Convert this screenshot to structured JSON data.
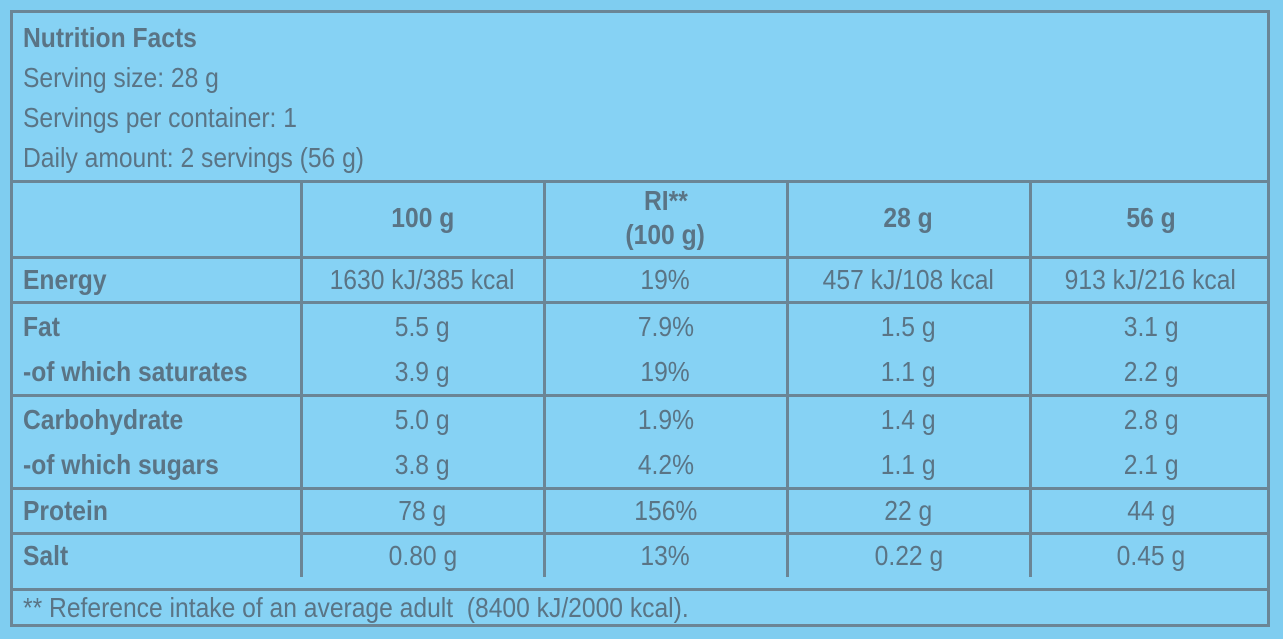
{
  "header": {
    "title": "Nutrition Facts",
    "serving_size": "Serving size: 28 g",
    "servings_per_container": "Servings per container: 1",
    "daily_amount": "Daily amount: 2 servings (56 g)"
  },
  "columns": {
    "label": "",
    "per100": "100 g",
    "ri_line1": "RI**",
    "ri_line2": "(100 g)",
    "per28": "28 g",
    "per56": "56 g"
  },
  "rows": {
    "energy": {
      "label": "Energy",
      "per100": "1630 kJ/385 kcal",
      "ri": "19%",
      "per28": "457 kJ/108 kcal",
      "per56": "913 kJ/216 kcal"
    },
    "fat": {
      "label": "Fat",
      "per100": "5.5 g",
      "ri": "7.9%",
      "per28": "1.5 g",
      "per56": "3.1 g"
    },
    "saturates": {
      "label": "-of which saturates",
      "per100": "3.9 g",
      "ri": "19%",
      "per28": "1.1 g",
      "per56": "2.2 g"
    },
    "carbohydrate": {
      "label": "Carbohydrate",
      "per100": "5.0 g",
      "ri": "1.9%",
      "per28": "1.4 g",
      "per56": "2.8 g"
    },
    "sugars": {
      "label": "-of which sugars",
      "per100": "3.8 g",
      "ri": "4.2%",
      "per28": "1.1 g",
      "per56": "2.1 g"
    },
    "protein": {
      "label": "Protein",
      "per100": "78 g",
      "ri": "156%",
      "per28": "22 g",
      "per56": "44 g"
    },
    "salt": {
      "label": "Salt",
      "per100": "0.80 g",
      "ri": "13%",
      "per28": "0.22 g",
      "per56": "0.45 g"
    }
  },
  "footer": {
    "note": "** Reference intake of an average adult  (8400 kJ/2000 kcal)."
  },
  "colors": {
    "background": "#86d2f4",
    "border": "#6b8595",
    "text": "#5a7485"
  }
}
